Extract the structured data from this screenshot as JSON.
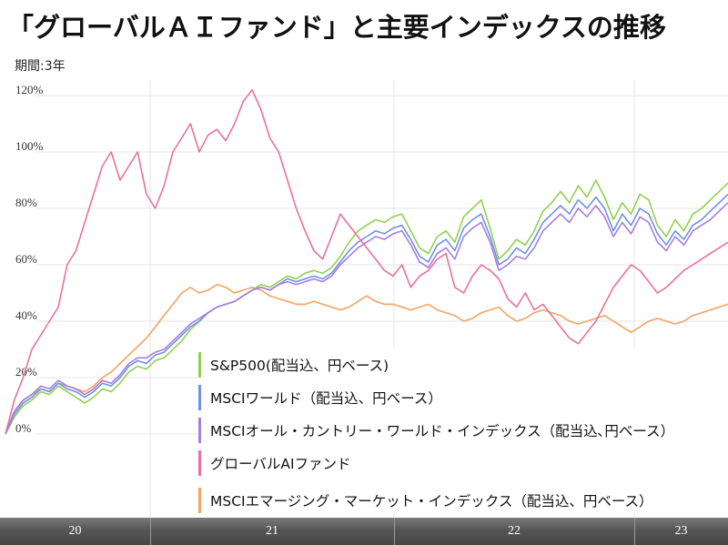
{
  "title": "「グローバルＡＩファンド」と主要インデックスの推移",
  "period_label": "期間:3年",
  "chart_data": {
    "type": "line",
    "y_ticks": [
      "0%",
      "20%",
      "40%",
      "60%",
      "80%",
      "100%",
      "120%"
    ],
    "ylim": [
      -5,
      125
    ],
    "grid": true,
    "legend_position": "bottom-right",
    "x_labels": [
      "20",
      "21",
      "22",
      "23"
    ],
    "series": [
      {
        "name": "S&P500(配当込、円ベース)",
        "color": "#92d050",
        "values": [
          0,
          6,
          10,
          12,
          15,
          14,
          17,
          15,
          13,
          11,
          13,
          16,
          15,
          18,
          22,
          24,
          23,
          26,
          27,
          30,
          33,
          37,
          40,
          43,
          45,
          46,
          47,
          49,
          51,
          53,
          52,
          54,
          56,
          55,
          57,
          58,
          57,
          59,
          63,
          68,
          72,
          74,
          76,
          75,
          77,
          78,
          72,
          66,
          64,
          70,
          72,
          68,
          77,
          80,
          83,
          73,
          62,
          65,
          69,
          67,
          72,
          79,
          82,
          86,
          82,
          88,
          84,
          90,
          84,
          76,
          82,
          78,
          85,
          83,
          74,
          70,
          76,
          72,
          78,
          80,
          83,
          86,
          89
        ]
      },
      {
        "name": "MSCIワールド（配当込、円ベース）",
        "color": "#6f92e6",
        "values": [
          0,
          7,
          11,
          13,
          16,
          15,
          18,
          16,
          15,
          13,
          15,
          18,
          17,
          20,
          24,
          26,
          25,
          28,
          29,
          32,
          35,
          38,
          40,
          43,
          45,
          46,
          47,
          49,
          51,
          52,
          51,
          53,
          55,
          54,
          55,
          56,
          55,
          57,
          61,
          65,
          68,
          70,
          72,
          71,
          73,
          74,
          69,
          63,
          61,
          67,
          69,
          65,
          73,
          76,
          78,
          70,
          60,
          62,
          66,
          64,
          69,
          75,
          78,
          81,
          78,
          83,
          80,
          84,
          80,
          72,
          78,
          74,
          80,
          78,
          71,
          67,
          72,
          69,
          74,
          76,
          79,
          82,
          85
        ]
      },
      {
        "name": "MSCIオール・カントリー・ワールド・インデックス（配当込､円ベース）",
        "color": "#a77de0",
        "values": [
          0,
          8,
          12,
          14,
          17,
          16,
          19,
          17,
          16,
          14,
          16,
          19,
          18,
          21,
          25,
          27,
          27,
          29,
          30,
          33,
          36,
          39,
          41,
          43,
          45,
          46,
          47,
          49,
          51,
          52,
          51,
          53,
          54,
          53,
          54,
          55,
          54,
          56,
          60,
          63,
          66,
          68,
          70,
          69,
          71,
          72,
          67,
          61,
          59,
          64,
          66,
          62,
          70,
          73,
          75,
          68,
          58,
          60,
          63,
          62,
          66,
          72,
          75,
          78,
          75,
          80,
          77,
          81,
          77,
          70,
          75,
          71,
          77,
          75,
          68,
          65,
          70,
          67,
          72,
          74,
          76,
          79,
          82
        ]
      },
      {
        "name": "グローバルAIファンド",
        "color": "#ec6fa0",
        "values": [
          0,
          12,
          20,
          30,
          35,
          40,
          45,
          60,
          65,
          75,
          85,
          95,
          100,
          90,
          95,
          100,
          85,
          80,
          88,
          100,
          105,
          110,
          100,
          106,
          108,
          104,
          110,
          118,
          122,
          115,
          105,
          100,
          90,
          80,
          72,
          65,
          62,
          70,
          78,
          74,
          70,
          66,
          62,
          58,
          56,
          60,
          52,
          56,
          58,
          62,
          64,
          52,
          50,
          56,
          60,
          58,
          55,
          48,
          45,
          50,
          44,
          46,
          42,
          38,
          34,
          32,
          36,
          40,
          46,
          52,
          56,
          60,
          58,
          54,
          50,
          52,
          55,
          58,
          60,
          62,
          64,
          66,
          68
        ]
      },
      {
        "name": "MSCIエマージング・マーケット・インデックス（配当込、円ベース）",
        "color": "#f4a460",
        "values": [
          0,
          8,
          12,
          14,
          16,
          15,
          18,
          17,
          16,
          15,
          17,
          20,
          22,
          25,
          28,
          31,
          34,
          38,
          42,
          46,
          50,
          52,
          50,
          51,
          53,
          52,
          50,
          51,
          52,
          51,
          49,
          48,
          47,
          46,
          46,
          47,
          46,
          45,
          44,
          45,
          47,
          49,
          47,
          46,
          46,
          45,
          44,
          45,
          46,
          44,
          43,
          42,
          40,
          41,
          43,
          44,
          45,
          42,
          40,
          41,
          43,
          44,
          43,
          42,
          40,
          39,
          40,
          41,
          42,
          40,
          38,
          36,
          38,
          40,
          41,
          40,
          39,
          40,
          42,
          43,
          44,
          45,
          46
        ]
      }
    ]
  }
}
